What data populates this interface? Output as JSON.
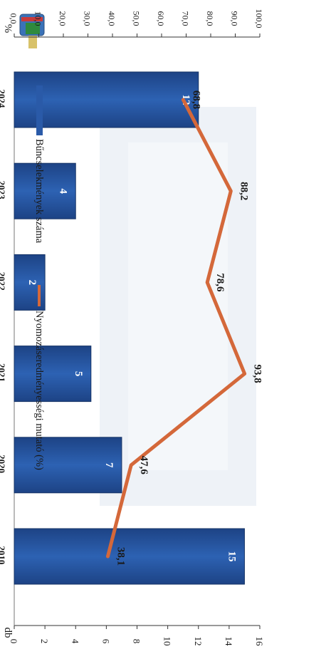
{
  "chart_data": {
    "type": "bar",
    "categories": [
      "2010.",
      "2020.",
      "2021.",
      "2022.",
      "2023.",
      "2024."
    ],
    "series": [
      {
        "name": "Bűncselekmények száma",
        "type": "bar",
        "axis": "left",
        "values": [
          15,
          7,
          5,
          2,
          4,
          12
        ]
      },
      {
        "name": "Nyomozáseredményességi mutató (%)",
        "type": "line",
        "axis": "right",
        "values": [
          38.1,
          47.6,
          93.8,
          78.6,
          88.2,
          68.8
        ]
      }
    ],
    "bar_labels": [
      "15",
      "7",
      "5",
      "2",
      "4",
      "12"
    ],
    "line_labels": [
      "38,1",
      "47,6",
      "93,8",
      "78,6",
      "88,2",
      "68,8"
    ],
    "left_axis": {
      "unit": "db",
      "range": [
        0,
        16
      ],
      "ticks": [
        "0",
        "2",
        "4",
        "6",
        "8",
        "10",
        "12",
        "14",
        "16"
      ]
    },
    "right_axis": {
      "unit": "%",
      "range": [
        0,
        100
      ],
      "ticks": [
        "0,0",
        "10,0",
        "20,0",
        "30,0",
        "40,0",
        "50,0",
        "60,0",
        "70,0",
        "80,0",
        "90,0",
        "100,0"
      ]
    },
    "legend_placement": "top",
    "grid": false,
    "orientation": "rotated 90° clockwise",
    "colors": {
      "bar": "#2a5aa8",
      "bar_dark": "#1b3f7c",
      "line": "#d4683a",
      "text": "#1a1a1a"
    }
  }
}
